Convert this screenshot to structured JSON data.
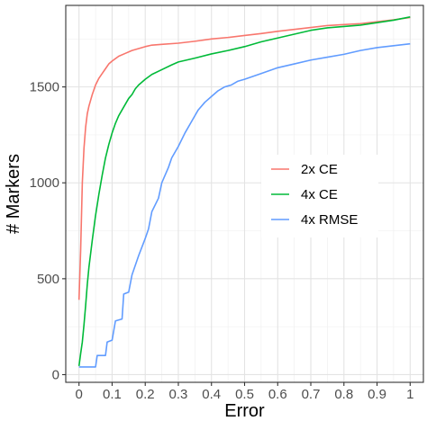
{
  "chart_data": {
    "type": "line",
    "xlabel": "Error",
    "ylabel": "# Markers",
    "xlim": [
      -0.04,
      1.04
    ],
    "ylim": [
      -40,
      1925
    ],
    "x_ticks": [
      0,
      0.1,
      0.2,
      0.3,
      0.4,
      0.5,
      0.6,
      0.7,
      0.8,
      0.9,
      1
    ],
    "x_tick_labels": [
      "0",
      "0.1",
      "0.2",
      "0.3",
      "0.4",
      "0.5",
      "0.6",
      "0.7",
      "0.8",
      "0.9",
      "1"
    ],
    "y_ticks": [
      0,
      500,
      1000,
      1500
    ],
    "y_tick_labels": [
      "0",
      "500",
      "1000",
      "1500"
    ],
    "grid": true,
    "legend_position": "right",
    "series": [
      {
        "name": "2x CE",
        "color": "#F8766D",
        "points": [
          [
            0,
            390
          ],
          [
            0.005,
            650
          ],
          [
            0.01,
            1000
          ],
          [
            0.015,
            1180
          ],
          [
            0.02,
            1290
          ],
          [
            0.025,
            1360
          ],
          [
            0.03,
            1400
          ],
          [
            0.04,
            1460
          ],
          [
            0.05,
            1510
          ],
          [
            0.06,
            1545
          ],
          [
            0.07,
            1570
          ],
          [
            0.08,
            1595
          ],
          [
            0.09,
            1620
          ],
          [
            0.1,
            1635
          ],
          [
            0.12,
            1660
          ],
          [
            0.14,
            1675
          ],
          [
            0.16,
            1690
          ],
          [
            0.18,
            1700
          ],
          [
            0.2,
            1710
          ],
          [
            0.22,
            1718
          ],
          [
            0.25,
            1722
          ],
          [
            0.3,
            1728
          ],
          [
            0.35,
            1738
          ],
          [
            0.4,
            1750
          ],
          [
            0.45,
            1758
          ],
          [
            0.5,
            1768
          ],
          [
            0.55,
            1778
          ],
          [
            0.6,
            1790
          ],
          [
            0.65,
            1800
          ],
          [
            0.7,
            1810
          ],
          [
            0.75,
            1820
          ],
          [
            0.8,
            1825
          ],
          [
            0.85,
            1830
          ],
          [
            0.9,
            1840
          ],
          [
            0.95,
            1850
          ],
          [
            1,
            1862
          ]
        ]
      },
      {
        "name": "4x CE",
        "color": "#00BA38",
        "points": [
          [
            0,
            45
          ],
          [
            0.005,
            110
          ],
          [
            0.01,
            170
          ],
          [
            0.015,
            260
          ],
          [
            0.02,
            360
          ],
          [
            0.025,
            470
          ],
          [
            0.03,
            560
          ],
          [
            0.04,
            700
          ],
          [
            0.05,
            830
          ],
          [
            0.06,
            940
          ],
          [
            0.07,
            1040
          ],
          [
            0.08,
            1130
          ],
          [
            0.09,
            1200
          ],
          [
            0.1,
            1260
          ],
          [
            0.11,
            1310
          ],
          [
            0.12,
            1350
          ],
          [
            0.13,
            1380
          ],
          [
            0.14,
            1410
          ],
          [
            0.15,
            1440
          ],
          [
            0.16,
            1460
          ],
          [
            0.17,
            1490
          ],
          [
            0.18,
            1510
          ],
          [
            0.2,
            1540
          ],
          [
            0.22,
            1565
          ],
          [
            0.25,
            1590
          ],
          [
            0.28,
            1615
          ],
          [
            0.3,
            1630
          ],
          [
            0.35,
            1650
          ],
          [
            0.4,
            1672
          ],
          [
            0.45,
            1690
          ],
          [
            0.5,
            1710
          ],
          [
            0.55,
            1735
          ],
          [
            0.6,
            1755
          ],
          [
            0.65,
            1775
          ],
          [
            0.7,
            1795
          ],
          [
            0.75,
            1808
          ],
          [
            0.8,
            1815
          ],
          [
            0.85,
            1822
          ],
          [
            0.9,
            1835
          ],
          [
            0.95,
            1848
          ],
          [
            1,
            1865
          ]
        ]
      },
      {
        "name": "4x RMSE",
        "color": "#619CFF",
        "points": [
          [
            0,
            40
          ],
          [
            0.05,
            40
          ],
          [
            0.055,
            100
          ],
          [
            0.08,
            100
          ],
          [
            0.085,
            170
          ],
          [
            0.1,
            180
          ],
          [
            0.11,
            280
          ],
          [
            0.13,
            290
          ],
          [
            0.135,
            420
          ],
          [
            0.15,
            430
          ],
          [
            0.16,
            520
          ],
          [
            0.18,
            620
          ],
          [
            0.2,
            710
          ],
          [
            0.21,
            760
          ],
          [
            0.22,
            850
          ],
          [
            0.24,
            920
          ],
          [
            0.25,
            1000
          ],
          [
            0.27,
            1080
          ],
          [
            0.28,
            1130
          ],
          [
            0.3,
            1190
          ],
          [
            0.32,
            1260
          ],
          [
            0.34,
            1320
          ],
          [
            0.36,
            1380
          ],
          [
            0.38,
            1420
          ],
          [
            0.4,
            1450
          ],
          [
            0.42,
            1480
          ],
          [
            0.44,
            1500
          ],
          [
            0.46,
            1510
          ],
          [
            0.48,
            1530
          ],
          [
            0.5,
            1540
          ],
          [
            0.55,
            1570
          ],
          [
            0.6,
            1600
          ],
          [
            0.65,
            1620
          ],
          [
            0.7,
            1640
          ],
          [
            0.75,
            1655
          ],
          [
            0.8,
            1670
          ],
          [
            0.85,
            1690
          ],
          [
            0.9,
            1705
          ],
          [
            0.95,
            1715
          ],
          [
            1,
            1725
          ]
        ]
      }
    ]
  }
}
